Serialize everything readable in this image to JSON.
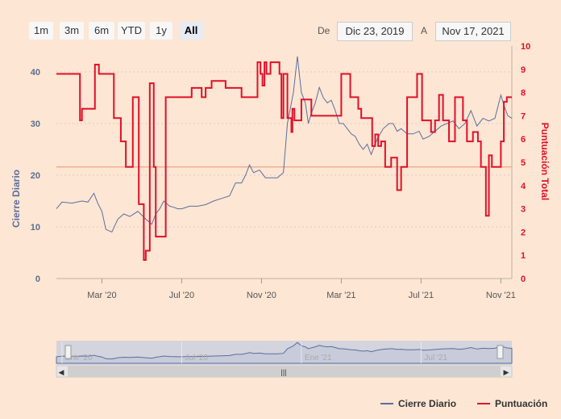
{
  "range_selector": {
    "buttons": [
      {
        "label": "1m",
        "selected": false
      },
      {
        "label": "3m",
        "selected": false
      },
      {
        "label": "6m",
        "selected": false
      },
      {
        "label": "YTD",
        "selected": false
      },
      {
        "label": "1y",
        "selected": false
      },
      {
        "label": "All",
        "selected": true
      }
    ],
    "from_label": "De",
    "from_value": "Dic 23, 2019",
    "to_label": "A",
    "to_value": "Nov 17, 2021"
  },
  "navigator": {
    "labels": [
      "Ene '20",
      "Jul '20",
      "Ene '21",
      "Jul '21"
    ]
  },
  "legend": {
    "items": [
      {
        "name": "Cierre Diario",
        "color": "#5a6e9e"
      },
      {
        "name": "Puntuación",
        "color": "#e0102a"
      }
    ]
  },
  "chart_data": {
    "type": "line",
    "x_unit": "months since 2020-01-01",
    "x_range": [
      -0.28,
      22.55
    ],
    "x_ticks": [
      {
        "label": "Mar '20",
        "x": 2
      },
      {
        "label": "Jul '20",
        "x": 6
      },
      {
        "label": "Nov '20",
        "x": 10
      },
      {
        "label": "Mar '21",
        "x": 14
      },
      {
        "label": "Jul '21",
        "x": 18
      },
      {
        "label": "Nov '21",
        "x": 22
      }
    ],
    "y_left": {
      "title": "Cierre Diario",
      "range": [
        0,
        45
      ],
      "ticks": [
        0,
        10,
        20,
        30,
        40
      ],
      "color": "#5a6e9e"
    },
    "y_right": {
      "title": "Puntuación Total",
      "range": [
        0,
        10
      ],
      "ticks": [
        0,
        1,
        2,
        3,
        4,
        5,
        6,
        7,
        8,
        9,
        10
      ],
      "color": "#e0102a"
    },
    "plot_line": {
      "axis": "right",
      "value": 4.8,
      "color": "#f0b090"
    },
    "series": [
      {
        "name": "Cierre Diario",
        "axis": "left",
        "color": "#5a6e9e",
        "x": [
          -0.28,
          0.0,
          0.5,
          1.0,
          1.3,
          1.6,
          1.8,
          2.0,
          2.2,
          2.5,
          2.8,
          3.1,
          3.4,
          3.8,
          4.2,
          4.5,
          4.7,
          4.9,
          5.1,
          5.4,
          5.6,
          5.8,
          6.0,
          6.4,
          6.8,
          7.2,
          7.6,
          8.0,
          8.4,
          8.7,
          9.0,
          9.2,
          9.4,
          9.6,
          9.9,
          10.2,
          10.5,
          10.8,
          11.1,
          11.3,
          11.45,
          11.6,
          11.8,
          12.0,
          12.2,
          12.35,
          12.5,
          12.7,
          12.9,
          13.1,
          13.3,
          13.5,
          13.7,
          13.9,
          14.1,
          14.3,
          14.5,
          14.7,
          14.9,
          15.1,
          15.3,
          15.5,
          15.8,
          16.1,
          16.4,
          16.6,
          16.8,
          17.0,
          17.3,
          17.6,
          17.9,
          18.1,
          18.4,
          18.7,
          19.0,
          19.3,
          19.6,
          19.9,
          20.2,
          20.5,
          20.8,
          21.1,
          21.4,
          21.7,
          22.0,
          22.2,
          22.35,
          22.55
        ],
        "y": [
          13.5,
          14.8,
          14.6,
          15.0,
          14.8,
          16.5,
          14.5,
          13.0,
          9.5,
          9.0,
          11.5,
          12.5,
          12.0,
          13.0,
          11.5,
          10.5,
          12.5,
          13.5,
          15.0,
          14.0,
          13.8,
          13.5,
          13.5,
          14.0,
          14.0,
          14.3,
          15.0,
          15.5,
          16.0,
          18.5,
          18.5,
          20.0,
          22.0,
          20.5,
          21.0,
          19.5,
          19.5,
          19.5,
          20.5,
          30.0,
          33.0,
          36.0,
          43.0,
          36.0,
          34.0,
          30.0,
          32.0,
          34.0,
          37.0,
          35.0,
          34.0,
          34.5,
          32.5,
          30.0,
          30.0,
          29.0,
          28.0,
          27.5,
          26.0,
          25.0,
          26.0,
          24.0,
          27.0,
          29.0,
          30.0,
          30.0,
          28.5,
          29.0,
          28.0,
          28.0,
          28.5,
          27.0,
          27.5,
          28.5,
          29.5,
          30.0,
          30.5,
          29.0,
          30.0,
          32.5,
          29.5,
          31.0,
          30.5,
          31.0,
          35.5,
          33.0,
          31.5,
          31.0
        ]
      },
      {
        "name": "Puntuación",
        "axis": "right",
        "color": "#e0102a",
        "step": true,
        "x": [
          -0.28,
          0.9,
          1.0,
          1.2,
          1.65,
          1.85,
          2.15,
          2.6,
          2.95,
          3.1,
          3.2,
          3.3,
          3.55,
          3.7,
          3.85,
          4.1,
          4.2,
          4.4,
          4.6,
          4.7,
          5.2,
          5.55,
          6.0,
          6.5,
          7.0,
          7.2,
          7.5,
          8.2,
          9.0,
          9.5,
          9.8,
          9.95,
          10.05,
          10.15,
          10.25,
          10.45,
          10.9,
          11.0,
          11.1,
          11.3,
          11.5,
          11.55,
          11.65,
          12.0,
          12.5,
          14.0,
          14.2,
          14.45,
          14.6,
          14.85,
          15.0,
          15.55,
          15.7,
          15.85,
          16.0,
          16.2,
          16.25,
          16.5,
          16.8,
          17.0,
          17.3,
          17.8,
          18.05,
          18.5,
          18.7,
          18.9,
          19.1,
          19.4,
          19.7,
          19.85,
          20.1,
          20.3,
          20.6,
          20.85,
          21.0,
          21.2,
          21.25,
          21.4,
          21.55,
          22.0,
          22.15,
          22.3
        ],
        "y": [
          8.8,
          6.8,
          7.3,
          7.3,
          9.2,
          8.8,
          8.8,
          6.9,
          5.9,
          5.9,
          4.8,
          4.8,
          7.8,
          7.8,
          3.2,
          0.8,
          1.2,
          8.4,
          4.8,
          1.8,
          7.8,
          7.8,
          7.8,
          8.2,
          7.8,
          8.2,
          8.5,
          8.2,
          7.8,
          7.8,
          9.3,
          8.8,
          8.3,
          9.3,
          8.8,
          9.3,
          8.8,
          6.9,
          8.8,
          6.9,
          6.3,
          7.3,
          6.8,
          7.7,
          7.0,
          8.8,
          8.8,
          7.8,
          7.8,
          7.3,
          6.9,
          5.7,
          6.2,
          5.7,
          5.9,
          4.8,
          4.8,
          5.2,
          3.8,
          4.8,
          7.8,
          8.8,
          6.8,
          6.3,
          6.8,
          7.9,
          6.8,
          5.9,
          7.8,
          7.8,
          6.8,
          5.9,
          6.3,
          5.9,
          4.8,
          4.8,
          2.7,
          5.3,
          4.8,
          5.9,
          7.6,
          7.8
        ]
      }
    ]
  }
}
